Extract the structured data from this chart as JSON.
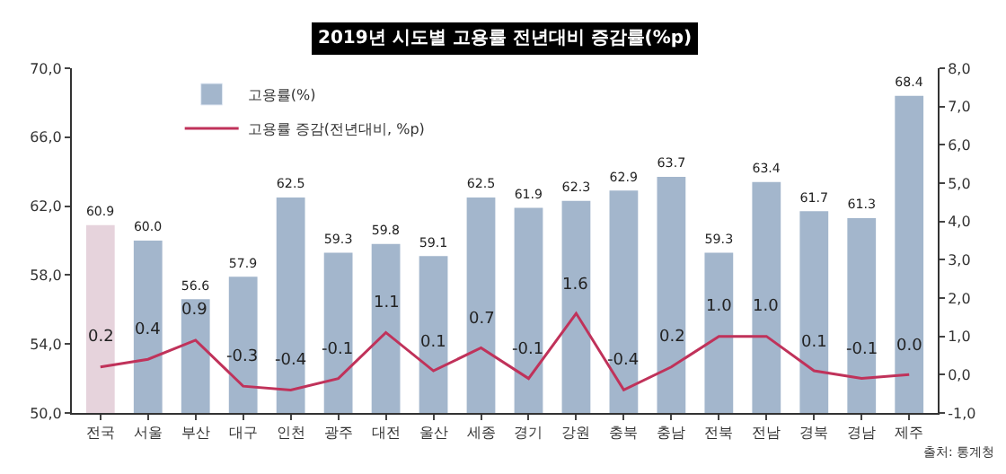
{
  "chart_data": {
    "type": "bar",
    "title": "2019년 시도별 고용률 전년대비 증감률(%p)",
    "categories": [
      "전국",
      "서울",
      "부산",
      "대구",
      "인천",
      "광주",
      "대전",
      "울산",
      "세종",
      "경기",
      "강원",
      "충북",
      "충남",
      "전북",
      "전남",
      "경북",
      "경남",
      "제주"
    ],
    "series": [
      {
        "name": "고용률(%)",
        "color": "#a3b6cc",
        "colors": [
          "#e6d3dc",
          "#a3b6cc",
          "#a3b6cc",
          "#a3b6cc",
          "#a3b6cc",
          "#a3b6cc",
          "#a3b6cc",
          "#a3b6cc",
          "#a3b6cc",
          "#a3b6cc",
          "#a3b6cc",
          "#a3b6cc",
          "#a3b6cc",
          "#a3b6cc",
          "#a3b6cc",
          "#a3b6cc",
          "#a3b6cc",
          "#a3b6cc"
        ],
        "values": [
          60.9,
          60.0,
          56.6,
          57.9,
          62.5,
          59.3,
          59.8,
          59.1,
          62.5,
          61.9,
          62.3,
          62.9,
          63.7,
          59.3,
          63.4,
          61.7,
          61.3,
          68.4
        ],
        "value_labels": [
          "60.9",
          "60.0",
          "56.6",
          "57.9",
          "62.5",
          "59.3",
          "59.8",
          "59.1",
          "62.5",
          "61.9",
          "62.3",
          "62.9",
          "63.7",
          "59.3",
          "63.4",
          "61.7",
          "61.3",
          "68.4"
        ]
      },
      {
        "name": "고용률 증감(전년대비, %p)",
        "type": "line",
        "axis": "y2",
        "color": "#c0325a",
        "values": [
          0.2,
          0.4,
          0.9,
          -0.3,
          -0.4,
          -0.1,
          1.1,
          0.1,
          0.7,
          -0.1,
          1.6,
          -0.4,
          0.2,
          1.0,
          1.0,
          0.1,
          -0.1,
          0.0
        ],
        "value_labels": [
          "0.2",
          "0.4",
          "0.9",
          "-0.3",
          "-0.4",
          "-0.1",
          "1.1",
          "0.1",
          "0.7",
          "-0.1",
          "1.6",
          "-0.4",
          "0.2",
          "1.0",
          "1.0",
          "0.1",
          "-0.1",
          "0.0"
        ]
      }
    ],
    "ylim": [
      50,
      70
    ],
    "yticks": [
      {
        "value": 50,
        "label": "50,0"
      },
      {
        "value": 54,
        "label": "54,0"
      },
      {
        "value": 58,
        "label": "58,0"
      },
      {
        "value": 62,
        "label": "62,0"
      },
      {
        "value": 66,
        "label": "66,0"
      },
      {
        "value": 70,
        "label": "70,0"
      }
    ],
    "y2lim": [
      -1,
      8
    ],
    "y2ticks": [
      {
        "value": -1,
        "label": "-1,0"
      },
      {
        "value": 0,
        "label": "0,0"
      },
      {
        "value": 1,
        "label": "1,0"
      },
      {
        "value": 2,
        "label": "2,0"
      },
      {
        "value": 3,
        "label": "3,0"
      },
      {
        "value": 4,
        "label": "4,0"
      },
      {
        "value": 5,
        "label": "5,0"
      },
      {
        "value": 6,
        "label": "6,0"
      },
      {
        "value": 7,
        "label": "7,0"
      },
      {
        "value": 8,
        "label": "8,0"
      }
    ],
    "legend": "top left",
    "marker": "none",
    "line_style": "solid",
    "annotations": [
      "출처: 통계청"
    ]
  }
}
